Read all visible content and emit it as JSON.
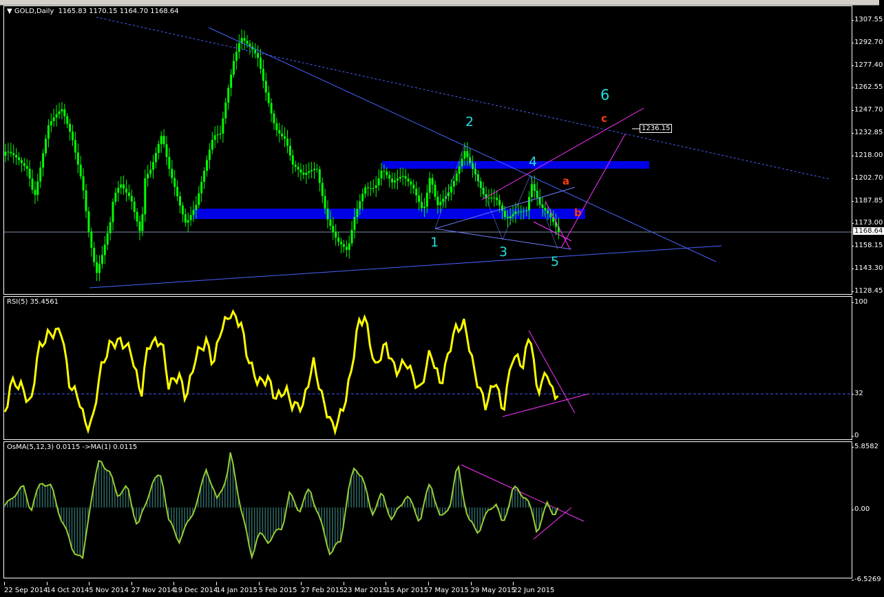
{
  "header": {
    "symbol_label": "GOLD,Daily",
    "open": "1165.83",
    "high": "1170.15",
    "low": "1164.70",
    "close": "1168.64"
  },
  "colors": {
    "candle": "#00ff00",
    "rsi": "#ffff00",
    "osma_hist": "#2e6b66",
    "osma_line": "#9acd32",
    "trend": "#4a63ff",
    "zone": "#0000e6",
    "pink": "#ff33ff",
    "wave_count": "#20e0e0",
    "wave_abc": "#ff3a10",
    "level": "#3b5bff"
  },
  "chart_data": [
    {
      "type": "candlestick",
      "title": "GOLD,Daily",
      "price_ticks": [
        "1307.55",
        "1292.70",
        "1277.40",
        "1262.55",
        "1247.70",
        "1232.85",
        "1218.00",
        "1202.70",
        "1187.85",
        "1173.00",
        "1158.15",
        "1143.30",
        "1128.45"
      ],
      "ylim": [
        1128.45,
        1307.55
      ],
      "x_ticks": [
        "22 Sep 2014",
        "14 Oct 2014",
        "5 Nov 2014",
        "27 Nov 2014",
        "19 Dec 2014",
        "14 Jan 2015",
        "5 Feb 2015",
        "27 Feb 2015",
        "23 Mar 2015",
        "15 Apr 2015",
        "7 May 2015",
        "29 May 2015",
        "22 Jun 2015"
      ],
      "close_trace": [
        1218,
        1211,
        1193,
        1237,
        1246,
        1230,
        1202,
        1166,
        1139,
        1152,
        1171,
        1189,
        1200,
        1193,
        1166,
        1202,
        1207,
        1230,
        1211,
        1198,
        1175,
        1184,
        1202,
        1230,
        1234,
        1262,
        1284,
        1296,
        1289,
        1280,
        1262,
        1239,
        1230,
        1211,
        1202,
        1211,
        1180,
        1162,
        1152,
        1175,
        1198,
        1200,
        1211,
        1198,
        1202,
        1198,
        1184,
        1207,
        1184,
        1189,
        1200,
        1223,
        1209,
        1189,
        1187,
        1175,
        1184,
        1184,
        1200,
        1182,
        1175,
        1168
      ],
      "current_price": "1168.64",
      "object_price_label": "1236.15",
      "wave_labels": [
        "1",
        "2",
        "3",
        "4",
        "5",
        "6"
      ],
      "abc_labels": [
        "a",
        "b",
        "c"
      ]
    },
    {
      "type": "line",
      "title": "RSI(5) 35.4561",
      "ylim": [
        0,
        100
      ],
      "level": 32,
      "y_ticks": [
        "100",
        "32",
        "0"
      ],
      "values": [
        14,
        39,
        37,
        22,
        63,
        75,
        78,
        39,
        27,
        6,
        11,
        47,
        68,
        70,
        63,
        29,
        68,
        70,
        37,
        45,
        27,
        60,
        70,
        52,
        78,
        91,
        83,
        57,
        39,
        42,
        27,
        34,
        22,
        22,
        55,
        24,
        4,
        22,
        47,
        83,
        88,
        50,
        68,
        47,
        55,
        32,
        63,
        37,
        78,
        83,
        45,
        22,
        42,
        16,
        60,
        52,
        78,
        32,
        47,
        27,
        34
      ]
    },
    {
      "type": "bar+line",
      "title": "OsMA(5,12,3) 0.0115  ->MA(1) 0.0115",
      "ylim": [
        -6.5269,
        5.8582
      ],
      "y_ticks": [
        "5.8582",
        "0.00",
        "-6.5269"
      ],
      "values": [
        0,
        1.3,
        1.9,
        -0.3,
        2.6,
        1.9,
        -1.3,
        -3.9,
        -5.2,
        0,
        4.8,
        3.2,
        1.3,
        1.9,
        -1.9,
        0,
        2.3,
        3.2,
        -1.3,
        -3.2,
        -1.3,
        1.3,
        3.9,
        0.6,
        3.2,
        5.2,
        0,
        -4.8,
        -2.6,
        -3.2,
        -1.9,
        1.3,
        -0.3,
        1.9,
        -1.3,
        -4.5,
        -3.2,
        1.3,
        3.9,
        3.2,
        -0.6,
        1.3,
        -1.3,
        1.3,
        -1.3,
        2.6,
        -1.3,
        0.6,
        4.2,
        -1.3,
        -2.3,
        -0.3,
        0.6,
        -1.9,
        1.9,
        1.0,
        -2.3,
        0.3,
        -0.6,
        0
      ]
    }
  ]
}
